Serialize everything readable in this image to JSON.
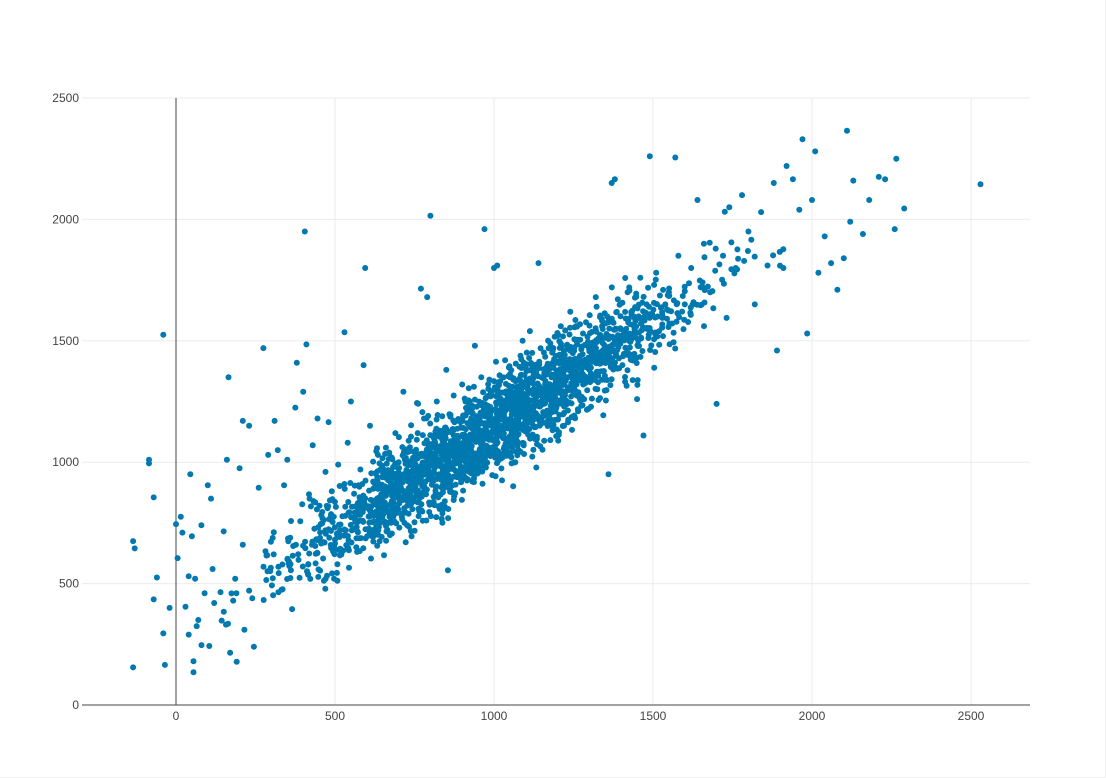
{
  "chart_data": {
    "type": "scatter",
    "title": "",
    "xlabel": "",
    "ylabel": "",
    "xlim": [
      -300,
      2700
    ],
    "ylim": [
      0,
      2500
    ],
    "x_ticks": [
      0,
      500,
      1000,
      1500,
      2000,
      2500
    ],
    "x_tick_labels": [
      "0",
      "500",
      "1000",
      "1500",
      "2000",
      "2500"
    ],
    "y_ticks": [
      0,
      500,
      1000,
      1500,
      2000,
      2500
    ],
    "y_tick_labels": [
      "0",
      "500",
      "1000",
      "1500",
      "2000",
      "2500"
    ],
    "grid": true,
    "legend": "none",
    "marker_color": "#0079b0",
    "series": [
      {
        "points": [
          [
            -135,
            675
          ],
          [
            -130,
            645
          ],
          [
            -135,
            155
          ],
          [
            -85,
            1010
          ],
          [
            -85,
            995
          ],
          [
            -70,
            855
          ],
          [
            -60,
            525
          ],
          [
            -70,
            435
          ],
          [
            -40,
            295
          ],
          [
            -35,
            165
          ],
          [
            -40,
            1525
          ],
          [
            -20,
            400
          ],
          [
            0,
            745
          ],
          [
            5,
            605
          ],
          [
            15,
            775
          ],
          [
            20,
            710
          ],
          [
            30,
            405
          ],
          [
            40,
            530
          ],
          [
            40,
            290
          ],
          [
            45,
            950
          ],
          [
            50,
            695
          ],
          [
            55,
            180
          ],
          [
            55,
            135
          ],
          [
            60,
            520
          ],
          [
            65,
            325
          ],
          [
            70,
            350
          ],
          [
            80,
            740
          ],
          [
            90,
            460
          ],
          [
            100,
            905
          ],
          [
            110,
            850
          ],
          [
            115,
            560
          ],
          [
            120,
            420
          ],
          [
            140,
            465
          ],
          [
            150,
            715
          ],
          [
            160,
            1010
          ],
          [
            165,
            1350
          ],
          [
            170,
            215
          ],
          [
            180,
            430
          ],
          [
            200,
            975
          ],
          [
            210,
            1170
          ],
          [
            210,
            660
          ],
          [
            215,
            310
          ],
          [
            230,
            1150
          ],
          [
            240,
            440
          ],
          [
            245,
            240
          ],
          [
            260,
            895
          ],
          [
            275,
            1470
          ],
          [
            290,
            1030
          ],
          [
            310,
            1170
          ],
          [
            320,
            1050
          ],
          [
            340,
            905
          ],
          [
            350,
            1010
          ],
          [
            360,
            580
          ],
          [
            365,
            395
          ],
          [
            375,
            1225
          ],
          [
            380,
            1410
          ],
          [
            400,
            1290
          ],
          [
            405,
            1950
          ],
          [
            410,
            1485
          ],
          [
            420,
            850
          ],
          [
            430,
            1070
          ],
          [
            445,
            1180
          ],
          [
            455,
            745
          ],
          [
            470,
            960
          ],
          [
            480,
            1165
          ],
          [
            490,
            880
          ],
          [
            500,
            665
          ],
          [
            510,
            990
          ],
          [
            520,
            620
          ],
          [
            530,
            1535
          ],
          [
            540,
            1080
          ],
          [
            550,
            1250
          ],
          [
            560,
            870
          ],
          [
            575,
            820
          ],
          [
            590,
            1400
          ],
          [
            595,
            1800
          ],
          [
            610,
            1150
          ],
          [
            620,
            920
          ],
          [
            630,
            1045
          ],
          [
            640,
            995
          ],
          [
            650,
            940
          ],
          [
            660,
            1060
          ],
          [
            675,
            880
          ],
          [
            690,
            1120
          ],
          [
            700,
            1000
          ],
          [
            715,
            1290
          ],
          [
            730,
            1050
          ],
          [
            740,
            830
          ],
          [
            760,
            1120
          ],
          [
            770,
            1715
          ],
          [
            780,
            1180
          ],
          [
            790,
            1680
          ],
          [
            800,
            2015
          ],
          [
            810,
            990
          ],
          [
            820,
            1250
          ],
          [
            830,
            1130
          ],
          [
            850,
            1380
          ],
          [
            855,
            555
          ],
          [
            870,
            1070
          ],
          [
            890,
            1170
          ],
          [
            900,
            1320
          ],
          [
            910,
            1090
          ],
          [
            925,
            1240
          ],
          [
            940,
            1480
          ],
          [
            950,
            1150
          ],
          [
            960,
            1350
          ],
          [
            970,
            1960
          ],
          [
            980,
            1210
          ],
          [
            990,
            1290
          ],
          [
            1000,
            1800
          ],
          [
            1010,
            1810
          ],
          [
            1020,
            1180
          ],
          [
            1035,
            1420
          ],
          [
            1050,
            1350
          ],
          [
            1060,
            1100
          ],
          [
            1080,
            1270
          ],
          [
            1090,
            1500
          ],
          [
            1100,
            1390
          ],
          [
            1120,
            1450
          ],
          [
            1140,
            1820
          ],
          [
            1150,
            1280
          ],
          [
            1170,
            1500
          ],
          [
            1190,
            1360
          ],
          [
            1210,
            1560
          ],
          [
            1220,
            1150
          ],
          [
            1240,
            1620
          ],
          [
            1260,
            1400
          ],
          [
            1280,
            1530
          ],
          [
            1300,
            1480
          ],
          [
            1320,
            1680
          ],
          [
            1340,
            1560
          ],
          [
            1360,
            950
          ],
          [
            1370,
            2150
          ],
          [
            1380,
            2165
          ],
          [
            1400,
            1500
          ],
          [
            1420,
            1700
          ],
          [
            1440,
            1600
          ],
          [
            1450,
            1260
          ],
          [
            1460,
            1760
          ],
          [
            1470,
            1110
          ],
          [
            1480,
            1650
          ],
          [
            1490,
            2260
          ],
          [
            1510,
            1780
          ],
          [
            1530,
            1600
          ],
          [
            1550,
            1700
          ],
          [
            1570,
            2255
          ],
          [
            1580,
            1850
          ],
          [
            1600,
            1650
          ],
          [
            1620,
            1800
          ],
          [
            1640,
            2080
          ],
          [
            1660,
            1900
          ],
          [
            1680,
            1700
          ],
          [
            1700,
            1240
          ],
          [
            1720,
            1850
          ],
          [
            1740,
            2050
          ],
          [
            1760,
            1800
          ],
          [
            1780,
            2100
          ],
          [
            1800,
            1950
          ],
          [
            1820,
            1650
          ],
          [
            1840,
            2030
          ],
          [
            1860,
            1810
          ],
          [
            1880,
            2150
          ],
          [
            1890,
            1460
          ],
          [
            1910,
            1800
          ],
          [
            1920,
            2220
          ],
          [
            1940,
            2165
          ],
          [
            1960,
            2040
          ],
          [
            1970,
            2330
          ],
          [
            1985,
            1530
          ],
          [
            2000,
            2080
          ],
          [
            2010,
            2280
          ],
          [
            2020,
            1780
          ],
          [
            2040,
            1930
          ],
          [
            2060,
            1820
          ],
          [
            2080,
            1710
          ],
          [
            2100,
            1840
          ],
          [
            2110,
            2365
          ],
          [
            2120,
            1990
          ],
          [
            2130,
            2160
          ],
          [
            2160,
            1940
          ],
          [
            2180,
            2080
          ],
          [
            2210,
            2175
          ],
          [
            2230,
            2165
          ],
          [
            2260,
            1960
          ],
          [
            2265,
            2250
          ],
          [
            2290,
            2045
          ],
          [
            2530,
            2145
          ]
        ]
      }
    ]
  }
}
